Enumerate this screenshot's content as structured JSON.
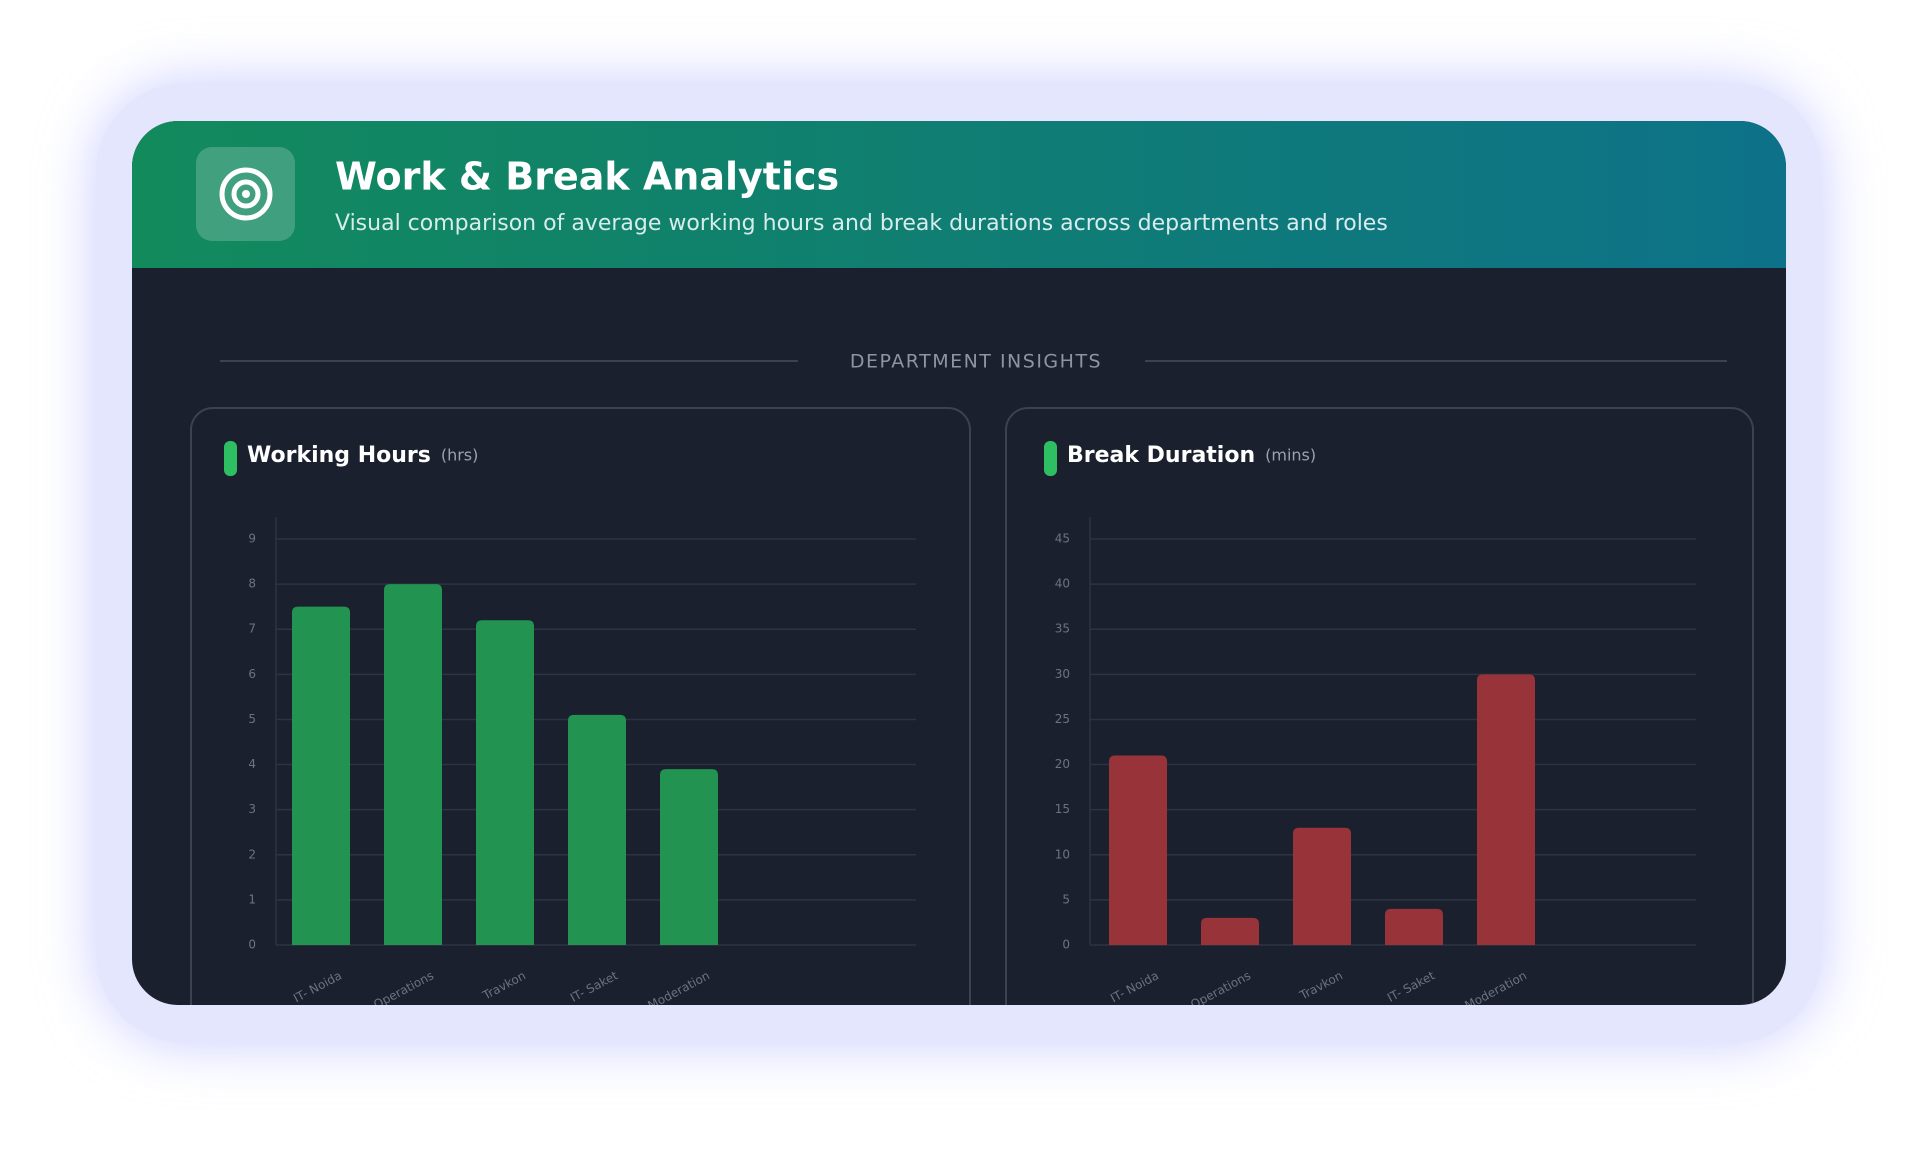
{
  "header": {
    "title": "Work & Break Analytics",
    "subtitle": "Visual comparison of average working hours and break durations across departments and roles"
  },
  "section_label": "DEPARTMENT INSIGHTS",
  "chart_data": [
    {
      "type": "bar",
      "title": "Working Hours",
      "unit": "(hrs)",
      "categories": [
        "IT- Noida",
        "Operations",
        "Travkon",
        "IT- Saket",
        "Content Moderation"
      ],
      "values": [
        7.5,
        8.0,
        7.2,
        5.1,
        3.9
      ],
      "color": "#229350",
      "ylim": [
        0,
        9
      ],
      "yticks": [
        0,
        1,
        2,
        3,
        4,
        5,
        6,
        7,
        8,
        9
      ],
      "grid": true
    },
    {
      "type": "bar",
      "title": "Break Duration",
      "unit": "(mins)",
      "categories": [
        "IT- Noida",
        "Operations",
        "Travkon",
        "IT- Saket",
        "Content Moderation"
      ],
      "values": [
        21,
        3,
        13,
        4,
        30
      ],
      "color": "#973339",
      "ylim": [
        0,
        45
      ],
      "yticks": [
        0,
        5,
        10,
        15,
        20,
        25,
        30,
        35,
        40,
        45
      ],
      "grid": true
    }
  ]
}
